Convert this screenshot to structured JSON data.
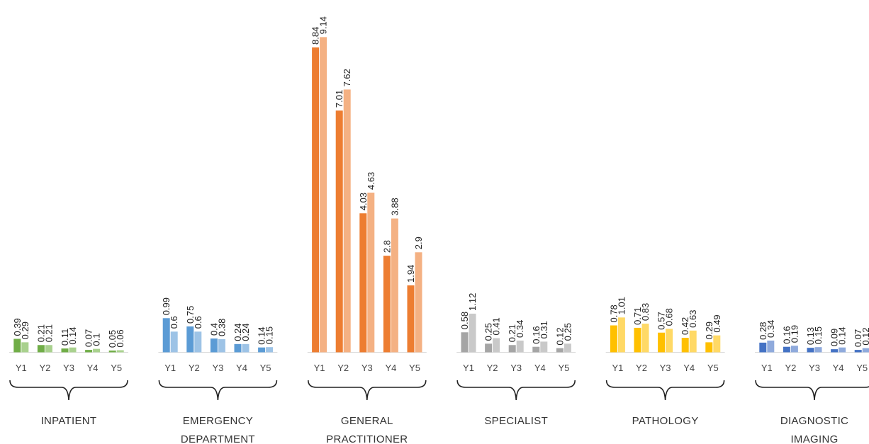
{
  "chart_data": {
    "type": "bar",
    "title": "",
    "xlabel": "",
    "ylabel": "",
    "ylim": [
      0,
      9.5
    ],
    "grid": false,
    "legend": "none",
    "groups": [
      {
        "label_lines": [
          "INPATIENT"
        ],
        "ticks": [
          "Y1",
          "Y2",
          "Y3",
          "Y4",
          "Y5"
        ],
        "series_a": [
          0.39,
          0.21,
          0.11,
          0.07,
          0.05
        ],
        "series_b": [
          0.29,
          0.21,
          0.14,
          0.1,
          0.06
        ],
        "color_a": "#70AD47",
        "color_b": "#A9D18E"
      },
      {
        "label_lines": [
          "EMERGENCY",
          "DEPARTMENT"
        ],
        "ticks": [
          "Y1",
          "Y2",
          "Y3",
          "Y4",
          "Y5"
        ],
        "series_a": [
          0.99,
          0.75,
          0.4,
          0.24,
          0.14
        ],
        "series_b": [
          0.6,
          0.6,
          0.38,
          0.24,
          0.15
        ],
        "color_a": "#5B9BD5",
        "color_b": "#9DC3E6"
      },
      {
        "label_lines": [
          "GENERAL",
          "PRACTITIONER"
        ],
        "ticks": [
          "Y1",
          "Y2",
          "Y3",
          "Y4",
          "Y5"
        ],
        "series_a": [
          8.84,
          7.01,
          4.03,
          2.8,
          1.94
        ],
        "series_b": [
          9.14,
          7.62,
          4.63,
          3.88,
          2.9
        ],
        "color_a": "#ED7D31",
        "color_b": "#F4B183"
      },
      {
        "label_lines": [
          "SPECIALIST"
        ],
        "ticks": [
          "Y1",
          "Y2",
          "Y3",
          "Y4",
          "Y5"
        ],
        "series_a": [
          0.58,
          0.25,
          0.21,
          0.16,
          0.12
        ],
        "series_b": [
          1.12,
          0.41,
          0.34,
          0.31,
          0.25
        ],
        "color_a": "#A5A5A5",
        "color_b": "#C9C9C9"
      },
      {
        "label_lines": [
          "PATHOLOGY"
        ],
        "ticks": [
          "Y1",
          "Y2",
          "Y3",
          "Y4",
          "Y5"
        ],
        "series_a": [
          0.78,
          0.71,
          0.57,
          0.42,
          0.29
        ],
        "series_b": [
          1.01,
          0.83,
          0.68,
          0.63,
          0.49
        ],
        "color_a": "#FFC000",
        "color_b": "#FFD966"
      },
      {
        "label_lines": [
          "DIAGNOSTIC",
          "IMAGING"
        ],
        "ticks": [
          "Y1",
          "Y2",
          "Y3",
          "Y4",
          "Y5"
        ],
        "series_a": [
          0.28,
          0.16,
          0.13,
          0.09,
          0.07
        ],
        "series_b": [
          0.34,
          0.19,
          0.15,
          0.14,
          0.12
        ],
        "color_a": "#4472C4",
        "color_b": "#8FAADC"
      }
    ]
  }
}
